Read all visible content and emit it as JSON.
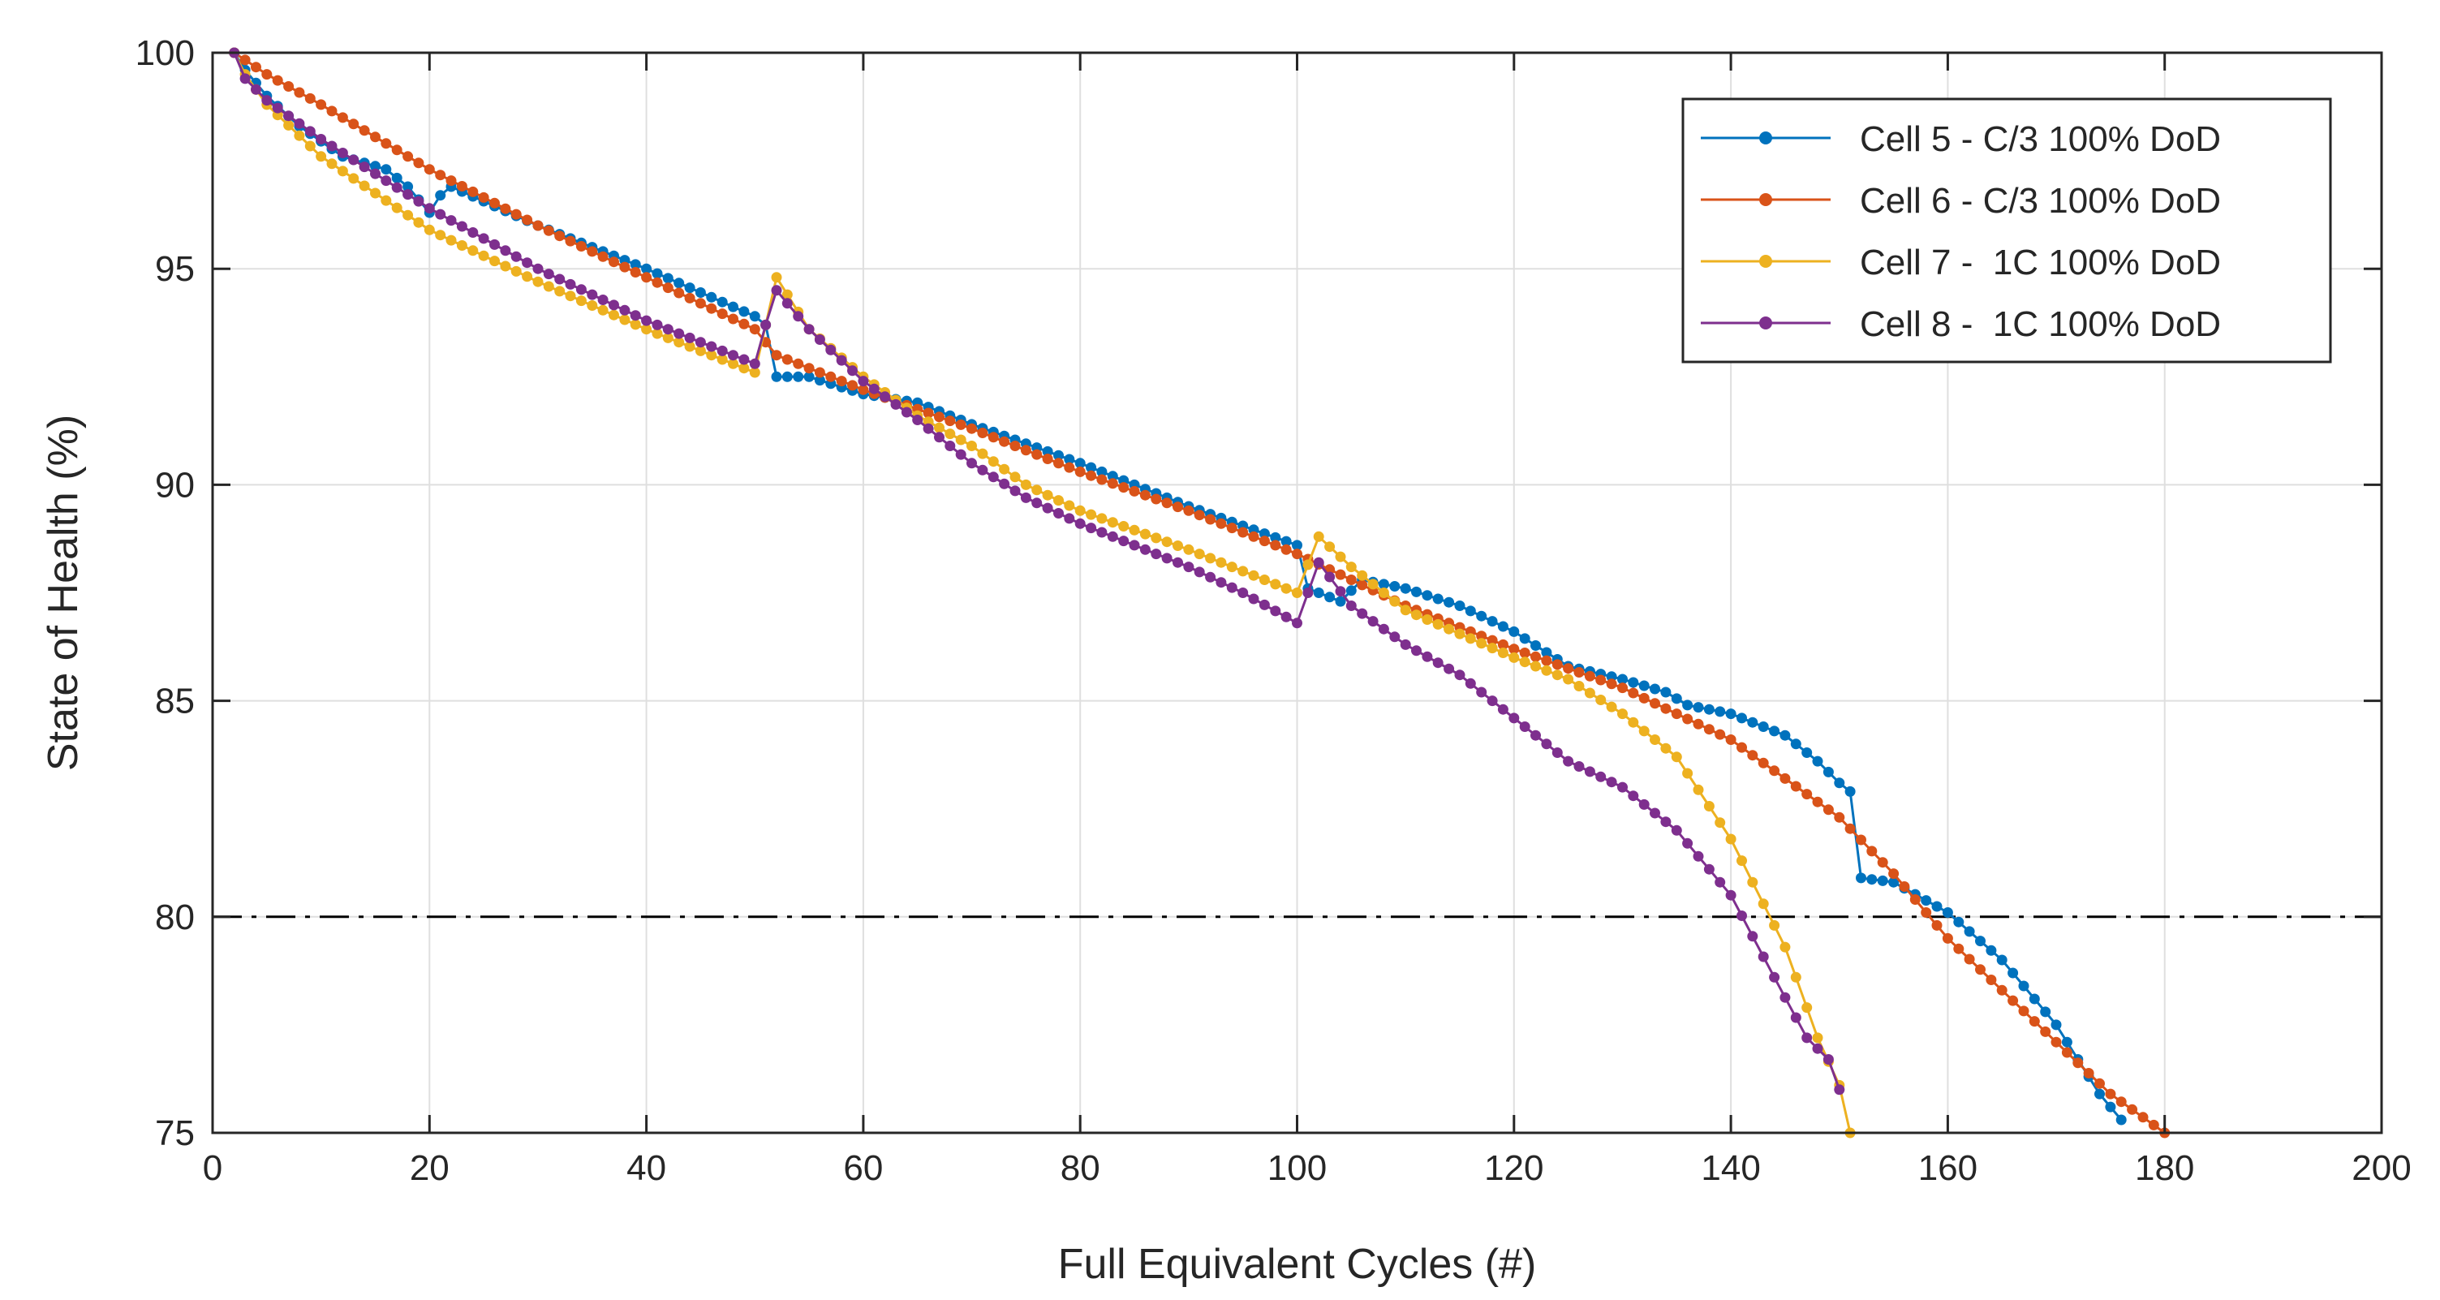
{
  "chart_data": {
    "type": "line",
    "title": "",
    "xlabel": "Full Equivalent Cycles (#)",
    "ylabel": "State of Health (%)",
    "xlim": [
      0,
      200
    ],
    "ylim": [
      75,
      100
    ],
    "xticks": [
      0,
      20,
      40,
      60,
      80,
      100,
      120,
      140,
      160,
      180,
      200
    ],
    "yticks": [
      75,
      80,
      85,
      90,
      95,
      100
    ],
    "grid": true,
    "legend_position": "top-right",
    "reference_line": {
      "y": 80,
      "style": "dash-dot",
      "color": "#000000"
    },
    "series": [
      {
        "name": "Cell 5 - C/3 100% DoD",
        "color": "#0072BD",
        "step": 1,
        "points": [
          [
            2,
            100
          ],
          [
            3,
            99.6
          ],
          [
            5,
            99.0
          ],
          [
            8,
            98.3
          ],
          [
            12,
            97.6
          ],
          [
            16,
            97.3
          ],
          [
            18,
            96.9
          ],
          [
            20,
            96.3
          ],
          [
            21,
            96.7
          ],
          [
            22,
            96.9
          ],
          [
            30,
            96.0
          ],
          [
            40,
            95.0
          ],
          [
            50,
            93.9
          ],
          [
            51,
            93.7
          ],
          [
            52,
            92.5
          ],
          [
            55,
            92.5
          ],
          [
            60,
            92.1
          ],
          [
            65,
            91.9
          ],
          [
            70,
            91.4
          ],
          [
            80,
            90.5
          ],
          [
            90,
            89.5
          ],
          [
            100,
            88.6
          ],
          [
            101,
            87.6
          ],
          [
            104,
            87.3
          ],
          [
            106,
            87.8
          ],
          [
            110,
            87.6
          ],
          [
            115,
            87.2
          ],
          [
            120,
            86.6
          ],
          [
            125,
            85.8
          ],
          [
            130,
            85.5
          ],
          [
            134,
            85.2
          ],
          [
            136,
            84.9
          ],
          [
            140,
            84.7
          ],
          [
            145,
            84.2
          ],
          [
            148,
            83.6
          ],
          [
            150,
            83.1
          ],
          [
            151,
            82.9
          ],
          [
            152,
            80.9
          ],
          [
            155,
            80.8
          ],
          [
            160,
            80.1
          ],
          [
            165,
            79.0
          ],
          [
            170,
            77.5
          ],
          [
            174,
            75.9
          ],
          [
            176,
            75.3
          ]
        ]
      },
      {
        "name": "Cell 6 - C/3 100% DoD",
        "color": "#D95319",
        "step": 1,
        "points": [
          [
            2,
            100
          ],
          [
            5,
            99.5
          ],
          [
            10,
            98.8
          ],
          [
            20,
            97.3
          ],
          [
            30,
            96.0
          ],
          [
            40,
            94.8
          ],
          [
            50,
            93.6
          ],
          [
            52,
            93.0
          ],
          [
            55,
            92.7
          ],
          [
            60,
            92.2
          ],
          [
            70,
            91.3
          ],
          [
            80,
            90.3
          ],
          [
            90,
            89.4
          ],
          [
            100,
            88.4
          ],
          [
            110,
            87.2
          ],
          [
            120,
            86.2
          ],
          [
            130,
            85.3
          ],
          [
            140,
            84.1
          ],
          [
            145,
            83.2
          ],
          [
            150,
            82.3
          ],
          [
            155,
            81.0
          ],
          [
            160,
            79.5
          ],
          [
            165,
            78.3
          ],
          [
            170,
            77.1
          ],
          [
            175,
            75.9
          ],
          [
            180,
            75.0
          ]
        ]
      },
      {
        "name": "Cell 7 -  1C 100% DoD",
        "color": "#EDB120",
        "step": 1,
        "points": [
          [
            2,
            100
          ],
          [
            3,
            99.5
          ],
          [
            5,
            98.8
          ],
          [
            10,
            97.6
          ],
          [
            20,
            95.9
          ],
          [
            30,
            94.7
          ],
          [
            40,
            93.6
          ],
          [
            50,
            92.6
          ],
          [
            52,
            94.8
          ],
          [
            55,
            93.6
          ],
          [
            60,
            92.5
          ],
          [
            65,
            91.6
          ],
          [
            70,
            90.9
          ],
          [
            75,
            90.0
          ],
          [
            80,
            89.4
          ],
          [
            90,
            88.5
          ],
          [
            100,
            87.5
          ],
          [
            102,
            88.8
          ],
          [
            105,
            88.1
          ],
          [
            110,
            87.1
          ],
          [
            120,
            86.0
          ],
          [
            125,
            85.5
          ],
          [
            130,
            84.7
          ],
          [
            135,
            83.7
          ],
          [
            140,
            81.8
          ],
          [
            145,
            79.3
          ],
          [
            148,
            77.2
          ],
          [
            150,
            76.1
          ],
          [
            151,
            75.0
          ]
        ]
      },
      {
        "name": "Cell 8 -  1C 100% DoD",
        "color": "#7E2F8E",
        "step": 1,
        "points": [
          [
            2,
            100
          ],
          [
            3,
            99.4
          ],
          [
            5,
            98.9
          ],
          [
            10,
            98.0
          ],
          [
            20,
            96.4
          ],
          [
            30,
            95.0
          ],
          [
            40,
            93.8
          ],
          [
            50,
            92.8
          ],
          [
            51,
            93.7
          ],
          [
            52,
            94.5
          ],
          [
            55,
            93.6
          ],
          [
            60,
            92.4
          ],
          [
            65,
            91.5
          ],
          [
            70,
            90.5
          ],
          [
            75,
            89.7
          ],
          [
            80,
            89.1
          ],
          [
            90,
            88.1
          ],
          [
            95,
            87.5
          ],
          [
            100,
            86.8
          ],
          [
            101,
            87.5
          ],
          [
            102,
            88.2
          ],
          [
            105,
            87.2
          ],
          [
            110,
            86.3
          ],
          [
            115,
            85.6
          ],
          [
            120,
            84.6
          ],
          [
            125,
            83.6
          ],
          [
            130,
            83.0
          ],
          [
            135,
            82.0
          ],
          [
            140,
            80.5
          ],
          [
            144,
            78.6
          ],
          [
            147,
            77.2
          ],
          [
            149,
            76.7
          ],
          [
            150,
            76.0
          ]
        ]
      }
    ]
  }
}
